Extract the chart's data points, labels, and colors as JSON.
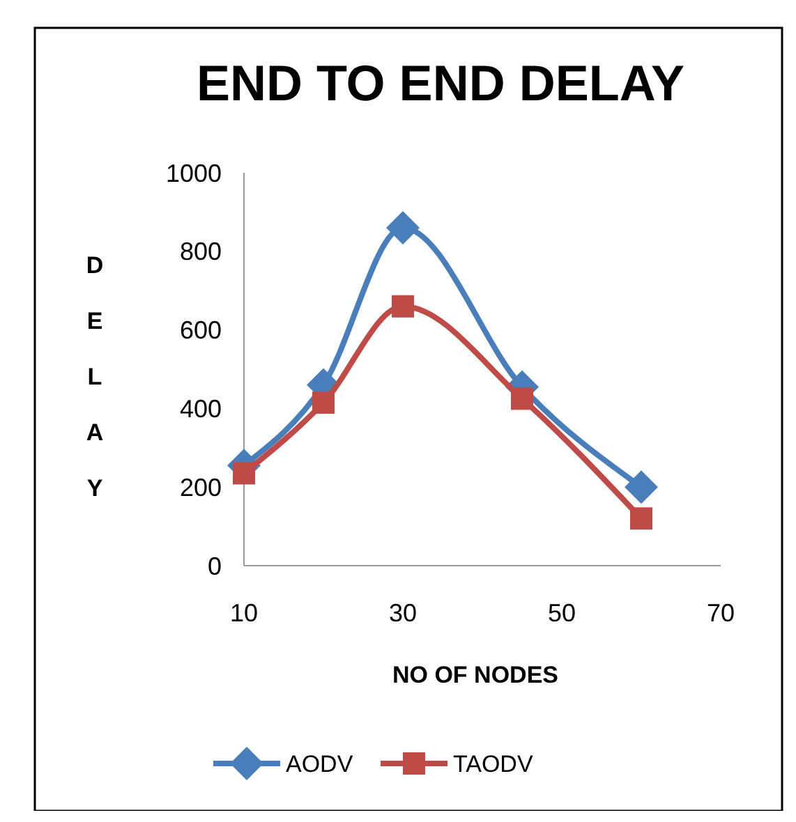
{
  "chart_data": {
    "type": "line",
    "title": "END TO END DELAY",
    "xlabel": "NO OF NODES",
    "ylabel": "DELAY",
    "x": [
      10,
      20,
      30,
      45,
      60
    ],
    "series": [
      {
        "name": "AODV",
        "color": "#4a7ebb",
        "marker": "diamond",
        "values": [
          255,
          460,
          860,
          455,
          200
        ]
      },
      {
        "name": "TAODV",
        "color": "#be4b48",
        "marker": "square",
        "values": [
          235,
          415,
          660,
          425,
          120
        ]
      }
    ],
    "xlim": [
      10,
      70
    ],
    "xticks": [
      10,
      30,
      50,
      70
    ],
    "ylim": [
      0,
      1000
    ],
    "yticks": [
      0,
      200,
      400,
      600,
      800,
      1000
    ],
    "grid": false,
    "legend": "bottom",
    "line_style": "solid"
  }
}
